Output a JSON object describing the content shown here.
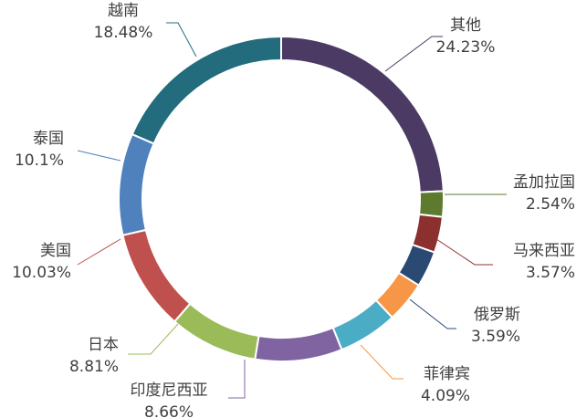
{
  "chart_data": {
    "type": "donut",
    "categories": [
      "其他",
      "孟加拉国",
      "马来西亚",
      "俄罗斯",
      "菲律宾",
      null,
      "印度尼西亚",
      "日本",
      "美国",
      "泰国",
      "越南"
    ],
    "values": [
      24.23,
      2.54,
      3.57,
      3.59,
      4.09,
      5.9,
      8.66,
      8.81,
      10.03,
      10.1,
      18.48
    ],
    "value_labels": [
      "24.23%",
      "2.54%",
      "3.57%",
      "3.59%",
      "4.09%",
      null,
      "8.66%",
      "8.81%",
      "10.03%",
      "10.1%",
      "18.48%"
    ],
    "colors": [
      "#4b3a63",
      "#5d7a2e",
      "#8b2f2f",
      "#2a4a74",
      "#f79646",
      "#4bacc6",
      "#8064a2",
      "#9bbb59",
      "#c0504d",
      "#4f81bd",
      "#226c7e"
    ]
  }
}
